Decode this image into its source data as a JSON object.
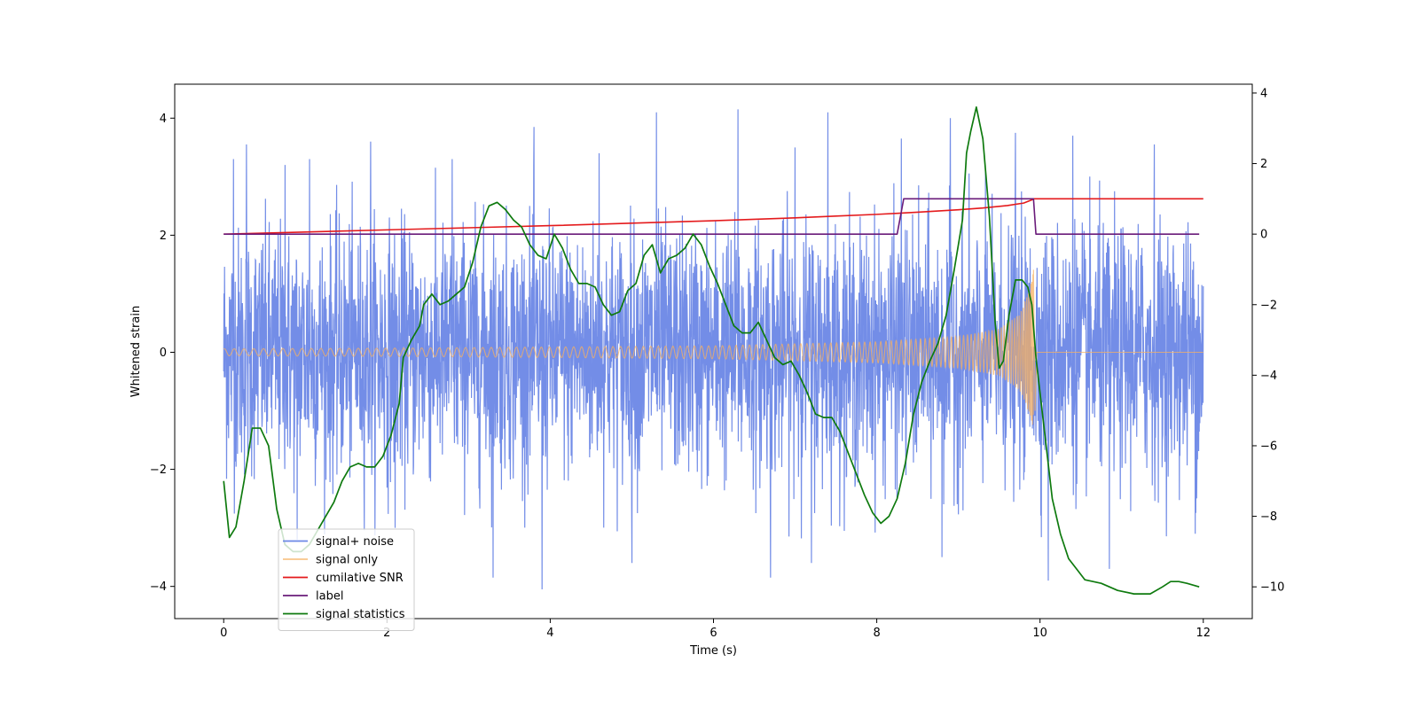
{
  "chart_data": {
    "type": "line",
    "xlabel": "Time (s)",
    "ylabel": "Whitened strain",
    "xlim": [
      -0.6,
      12.6
    ],
    "ylim": [
      -4.55,
      4.58
    ],
    "y2lim": [
      -10.9,
      4.25
    ],
    "x_ticks": [
      0,
      2,
      4,
      6,
      8,
      10,
      12
    ],
    "y_ticks": [
      -4,
      -2,
      0,
      2,
      4
    ],
    "y2_ticks": [
      -10,
      -8,
      -6,
      -4,
      -2,
      0,
      2,
      4
    ],
    "x_tick_labels": [
      "0",
      "2",
      "4",
      "6",
      "8",
      "10",
      "12"
    ],
    "y_tick_labels": [
      "−4",
      "−2",
      "0",
      "2",
      "4"
    ],
    "y2_tick_labels": [
      "−10",
      "−8",
      "−6",
      "−4",
      "−2",
      "0",
      "2",
      "4"
    ],
    "legend_position": "lower-left",
    "series": [
      {
        "name": "signal+ noise",
        "axis": "left",
        "color": "#6b87e6",
        "description_values": {
          "t_start": 0,
          "t_end": 12,
          "noise_band": [
            -2.3,
            2.4
          ],
          "peak_max": 4.15,
          "peak_min": -4.05
        },
        "peaks": [
          [
            0.12,
            3.3
          ],
          [
            0.28,
            3.55
          ],
          [
            0.75,
            3.2
          ],
          [
            1.05,
            3.3
          ],
          [
            1.8,
            3.6
          ],
          [
            2.8,
            3.3
          ],
          [
            3.8,
            3.85
          ],
          [
            4.6,
            3.4
          ],
          [
            5.3,
            4.1
          ],
          [
            6.3,
            4.15
          ],
          [
            7.0,
            3.5
          ],
          [
            7.4,
            4.1
          ],
          [
            8.3,
            3.65
          ],
          [
            8.9,
            4.0
          ],
          [
            9.7,
            3.75
          ],
          [
            10.4,
            3.7
          ],
          [
            11.4,
            3.55
          ],
          [
            0.9,
            -3.2
          ],
          [
            2.1,
            -3.0
          ],
          [
            3.3,
            -3.85
          ],
          [
            3.9,
            -4.05
          ],
          [
            5.0,
            -3.6
          ],
          [
            6.7,
            -3.85
          ],
          [
            7.2,
            -3.6
          ],
          [
            8.8,
            -3.5
          ],
          [
            10.1,
            -3.9
          ],
          [
            10.85,
            -3.7
          ],
          [
            11.9,
            -3.1
          ]
        ]
      },
      {
        "name": "signal only",
        "axis": "left",
        "color": "#f5b061",
        "envelope": [
          [
            0,
            0.06
          ],
          [
            2,
            0.07
          ],
          [
            4,
            0.09
          ],
          [
            6,
            0.11
          ],
          [
            8,
            0.18
          ],
          [
            9,
            0.27
          ],
          [
            9.5,
            0.4
          ],
          [
            9.75,
            0.65
          ],
          [
            9.87,
            1.05
          ],
          [
            9.92,
            1.45
          ]
        ],
        "t_merge": 9.92,
        "t_end": 12
      },
      {
        "name": "cumilative SNR",
        "axis": "right",
        "color": "#e41a1c",
        "x": [
          0,
          1,
          2,
          3,
          4,
          5,
          6,
          7,
          7.5,
          8,
          8.5,
          9,
          9.3,
          9.6,
          9.8,
          9.9,
          9.92,
          12
        ],
        "y": [
          0,
          0.06,
          0.12,
          0.18,
          0.24,
          0.31,
          0.38,
          0.46,
          0.51,
          0.56,
          0.62,
          0.69,
          0.74,
          0.81,
          0.88,
          0.97,
          1.0,
          1.0
        ]
      },
      {
        "name": "label",
        "axis": "right",
        "color": "#6a1b7a",
        "x": [
          0,
          8.25,
          8.33,
          9.92,
          9.95,
          11.95
        ],
        "y": [
          0,
          0,
          1,
          1,
          0,
          0
        ]
      },
      {
        "name": "signal statistics",
        "axis": "right",
        "color": "#0e7a0e",
        "x": [
          0,
          0.07,
          0.15,
          0.25,
          0.35,
          0.45,
          0.55,
          0.65,
          0.75,
          0.85,
          0.95,
          1.05,
          1.15,
          1.25,
          1.35,
          1.45,
          1.55,
          1.65,
          1.75,
          1.85,
          1.95,
          2.05,
          2.15,
          2.2,
          2.3,
          2.4,
          2.45,
          2.55,
          2.65,
          2.75,
          2.85,
          2.95,
          3.05,
          3.15,
          3.25,
          3.35,
          3.45,
          3.55,
          3.65,
          3.75,
          3.85,
          3.95,
          4.05,
          4.15,
          4.25,
          4.35,
          4.45,
          4.55,
          4.65,
          4.75,
          4.85,
          4.95,
          5.05,
          5.15,
          5.25,
          5.35,
          5.45,
          5.55,
          5.65,
          5.75,
          5.85,
          5.95,
          6.05,
          6.15,
          6.25,
          6.35,
          6.45,
          6.55,
          6.65,
          6.75,
          6.85,
          6.95,
          7.05,
          7.15,
          7.25,
          7.35,
          7.45,
          7.55,
          7.65,
          7.75,
          7.85,
          7.95,
          8.05,
          8.15,
          8.25,
          8.35,
          8.45,
          8.55,
          8.65,
          8.75,
          8.85,
          8.95,
          9.05,
          9.1,
          9.15,
          9.22,
          9.3,
          9.38,
          9.45,
          9.5,
          9.55,
          9.62,
          9.7,
          9.78,
          9.85,
          9.9,
          9.95,
          10.05,
          10.15,
          10.25,
          10.35,
          10.45,
          10.55,
          10.75,
          10.95,
          11.15,
          11.35,
          11.5,
          11.6,
          11.7,
          11.8,
          11.95
        ],
        "y": [
          -7.0,
          -8.6,
          -8.3,
          -7.0,
          -5.5,
          -5.5,
          -6.0,
          -7.8,
          -8.8,
          -9.0,
          -9.0,
          -8.8,
          -8.4,
          -8.0,
          -7.6,
          -7.0,
          -6.6,
          -6.5,
          -6.6,
          -6.6,
          -6.3,
          -5.7,
          -4.8,
          -3.5,
          -3.0,
          -2.6,
          -2.0,
          -1.7,
          -2.0,
          -1.9,
          -1.7,
          -1.5,
          -0.8,
          0.2,
          0.8,
          0.9,
          0.7,
          0.4,
          0.2,
          -0.3,
          -0.6,
          -0.7,
          0.0,
          -0.4,
          -1.0,
          -1.4,
          -1.4,
          -1.5,
          -2.0,
          -2.3,
          -2.2,
          -1.6,
          -1.4,
          -0.6,
          -0.3,
          -1.1,
          -0.7,
          -0.6,
          -0.4,
          0.0,
          -0.3,
          -0.9,
          -1.4,
          -2.0,
          -2.6,
          -2.8,
          -2.8,
          -2.5,
          -3.0,
          -3.5,
          -3.7,
          -3.6,
          -4.0,
          -4.5,
          -5.1,
          -5.2,
          -5.2,
          -5.6,
          -6.2,
          -6.8,
          -7.4,
          -7.9,
          -8.2,
          -8.0,
          -7.5,
          -6.5,
          -5.1,
          -4.2,
          -3.6,
          -3.1,
          -2.3,
          -1.0,
          0.4,
          2.3,
          2.9,
          3.6,
          2.7,
          0.5,
          -2.5,
          -3.8,
          -3.6,
          -2.3,
          -1.3,
          -1.3,
          -1.5,
          -2.0,
          -3.5,
          -5.5,
          -7.5,
          -8.5,
          -9.2,
          -9.5,
          -9.8,
          -9.9,
          -10.1,
          -10.2,
          -10.2,
          -10.0,
          -9.85,
          -9.85,
          -9.9,
          -10.0
        ]
      }
    ]
  }
}
